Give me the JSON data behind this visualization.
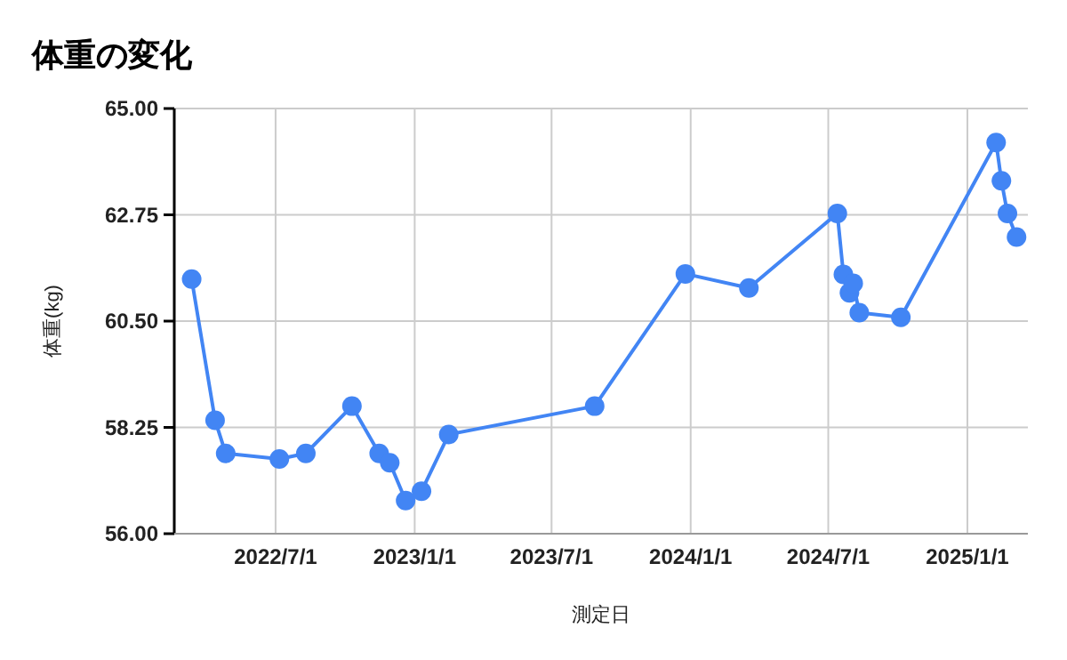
{
  "chart_data": {
    "type": "line",
    "title": "体重の変化",
    "xlabel": "測定日",
    "ylabel": "体重(kg)",
    "x": [
      "2022-03-12",
      "2022-04-12",
      "2022-04-26",
      "2022-07-06",
      "2022-08-10",
      "2022-10-10",
      "2022-11-15",
      "2022-11-29",
      "2022-12-20",
      "2023-01-10",
      "2023-02-15",
      "2023-08-27",
      "2023-12-25",
      "2024-03-18",
      "2024-07-13",
      "2024-07-21",
      "2024-07-29",
      "2024-08-03",
      "2024-08-11",
      "2024-10-05",
      "2025-02-08",
      "2025-02-15",
      "2025-02-23",
      "2025-03-07"
    ],
    "series": [
      {
        "color": "#4285f4",
        "values": [
          61.39,
          58.4,
          57.7,
          57.58,
          57.7,
          58.7,
          57.7,
          57.5,
          56.7,
          56.9,
          58.1,
          58.7,
          61.5,
          61.2,
          62.78,
          61.49,
          61.1,
          61.3,
          60.68,
          60.58,
          64.28,
          63.47,
          62.78,
          62.28
        ]
      }
    ],
    "xlim": [
      "2022-02-17",
      "2025-03-22"
    ],
    "xticks": [
      {
        "value": "2022-07-01",
        "label": "2022/7/1"
      },
      {
        "value": "2023-01-01",
        "label": "2023/1/1"
      },
      {
        "value": "2023-07-01",
        "label": "2023/7/1"
      },
      {
        "value": "2024-01-01",
        "label": "2024/1/1"
      },
      {
        "value": "2024-07-01",
        "label": "2024/7/1"
      },
      {
        "value": "2025-01-01",
        "label": "2025/1/1"
      }
    ],
    "ylim": [
      56,
      65
    ],
    "yticks": [
      {
        "value": 56,
        "label": "56.00"
      },
      {
        "value": 58.25,
        "label": "58.25"
      },
      {
        "value": 60.5,
        "label": "60.50"
      },
      {
        "value": 62.75,
        "label": "62.75"
      },
      {
        "value": 65,
        "label": "65.00"
      }
    ],
    "grid": true,
    "marker": "circle",
    "line_style": "solid"
  }
}
